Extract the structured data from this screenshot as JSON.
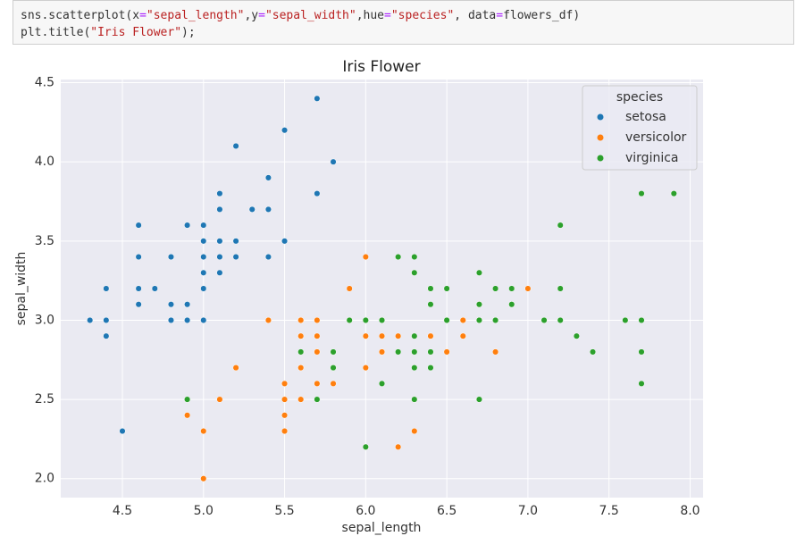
{
  "code": [
    [
      "sns.scatterplot(x",
      "=",
      "\"sepal_length\"",
      ",y",
      "=",
      "\"sepal_width\"",
      ",hue",
      "=",
      "\"species\"",
      ", data",
      "=",
      "flowers_df)"
    ],
    [
      "plt.title(",
      "\"Iris Flower\"",
      ");"
    ]
  ],
  "chart_data": {
    "type": "scatter",
    "title": "Iris Flower",
    "xlabel": "sepal_length",
    "ylabel": "sepal_width",
    "legend_title": "species",
    "legend_position": "upper right",
    "grid": true,
    "xlim": [
      4.12,
      8.08
    ],
    "ylim": [
      1.88,
      4.52
    ],
    "xticks": [
      4.5,
      {
        "value": 5,
        "label": "5.0"
      },
      5.5,
      {
        "value": 6,
        "label": "6.0"
      },
      6.5,
      {
        "value": 7,
        "label": "7.0"
      },
      7.5,
      {
        "value": 8,
        "label": "8.0"
      }
    ],
    "yticks": [
      {
        "value": 2,
        "label": "2.0"
      },
      2.5,
      {
        "value": 3,
        "label": "3.0"
      },
      3.5,
      {
        "value": 4,
        "label": "4.0"
      },
      4.5
    ],
    "series": [
      {
        "name": "setosa",
        "color": "#1f77b4",
        "x": [
          5.1,
          4.9,
          4.7,
          4.6,
          5.0,
          5.4,
          4.6,
          5.0,
          4.4,
          4.9,
          5.4,
          4.8,
          4.8,
          4.3,
          5.8,
          5.7,
          5.4,
          5.1,
          5.7,
          5.1,
          5.4,
          5.1,
          4.6,
          5.1,
          4.8,
          5.0,
          5.0,
          5.2,
          5.2,
          4.7,
          4.8,
          5.4,
          5.2,
          5.5,
          4.9,
          5.0,
          5.5,
          4.9,
          4.4,
          5.1,
          5.0,
          4.5,
          4.4,
          5.0,
          5.1,
          4.8,
          5.1,
          4.6,
          5.3,
          5.0
        ],
        "values": [
          3.5,
          3.0,
          3.2,
          3.1,
          3.6,
          3.9,
          3.4,
          3.4,
          2.9,
          3.1,
          3.7,
          3.4,
          3.0,
          3.0,
          4.0,
          4.4,
          3.9,
          3.5,
          3.8,
          3.8,
          3.4,
          3.7,
          3.6,
          3.3,
          3.4,
          3.0,
          3.4,
          3.5,
          3.4,
          3.2,
          3.1,
          3.4,
          4.1,
          4.2,
          3.1,
          3.2,
          3.5,
          3.6,
          3.0,
          3.4,
          3.5,
          2.3,
          3.2,
          3.5,
          3.8,
          3.0,
          3.8,
          3.2,
          3.7,
          3.3
        ]
      },
      {
        "name": "versicolor",
        "color": "#ff7f0e",
        "x": [
          7.0,
          6.4,
          6.9,
          5.5,
          6.5,
          5.7,
          6.3,
          4.9,
          6.6,
          5.2,
          5.0,
          5.9,
          6.0,
          6.1,
          5.6,
          6.7,
          5.6,
          5.8,
          6.2,
          5.6,
          5.9,
          6.1,
          6.3,
          6.1,
          6.4,
          6.6,
          6.8,
          6.7,
          6.0,
          5.7,
          5.5,
          5.5,
          5.8,
          6.0,
          5.4,
          6.0,
          6.7,
          6.3,
          5.6,
          5.5,
          5.5,
          6.1,
          5.8,
          5.0,
          5.6,
          5.7,
          5.7,
          6.2,
          5.1,
          5.7
        ],
        "values": [
          3.2,
          3.2,
          3.1,
          2.3,
          2.8,
          2.8,
          3.3,
          2.4,
          2.9,
          2.7,
          2.0,
          3.0,
          2.2,
          2.9,
          2.9,
          3.1,
          3.0,
          2.7,
          2.2,
          2.5,
          3.2,
          2.8,
          2.5,
          2.8,
          2.9,
          3.0,
          2.8,
          3.0,
          2.9,
          2.6,
          2.4,
          2.4,
          2.7,
          2.7,
          3.0,
          3.4,
          3.1,
          2.3,
          3.0,
          2.5,
          2.6,
          3.0,
          2.6,
          2.3,
          2.7,
          3.0,
          2.9,
          2.9,
          2.5,
          2.8
        ]
      },
      {
        "name": "virginica",
        "color": "#2ca02c",
        "x": [
          6.3,
          5.8,
          7.1,
          6.3,
          6.5,
          7.6,
          4.9,
          7.3,
          6.7,
          7.2,
          6.5,
          6.4,
          6.8,
          5.7,
          5.8,
          6.4,
          6.5,
          7.7,
          7.7,
          6.0,
          6.9,
          5.6,
          7.7,
          6.3,
          6.7,
          7.2,
          6.2,
          6.1,
          6.4,
          7.2,
          7.4,
          7.9,
          6.4,
          6.3,
          6.1,
          7.7,
          6.3,
          6.4,
          6.0,
          6.9,
          6.7,
          6.9,
          5.8,
          6.8,
          6.7,
          6.7,
          6.3,
          6.5,
          6.2,
          5.9
        ],
        "values": [
          3.3,
          2.7,
          3.0,
          2.9,
          3.0,
          3.0,
          2.5,
          2.9,
          2.5,
          3.6,
          3.2,
          2.7,
          3.0,
          2.5,
          2.8,
          3.2,
          3.0,
          3.8,
          2.6,
          2.2,
          3.2,
          2.8,
          2.8,
          2.7,
          3.3,
          3.2,
          2.8,
          3.0,
          2.8,
          3.0,
          2.8,
          3.8,
          2.8,
          2.8,
          2.6,
          3.0,
          3.4,
          3.1,
          3.0,
          3.1,
          3.1,
          3.1,
          2.7,
          3.2,
          3.3,
          3.0,
          2.5,
          3.0,
          3.4,
          3.0
        ]
      }
    ]
  }
}
